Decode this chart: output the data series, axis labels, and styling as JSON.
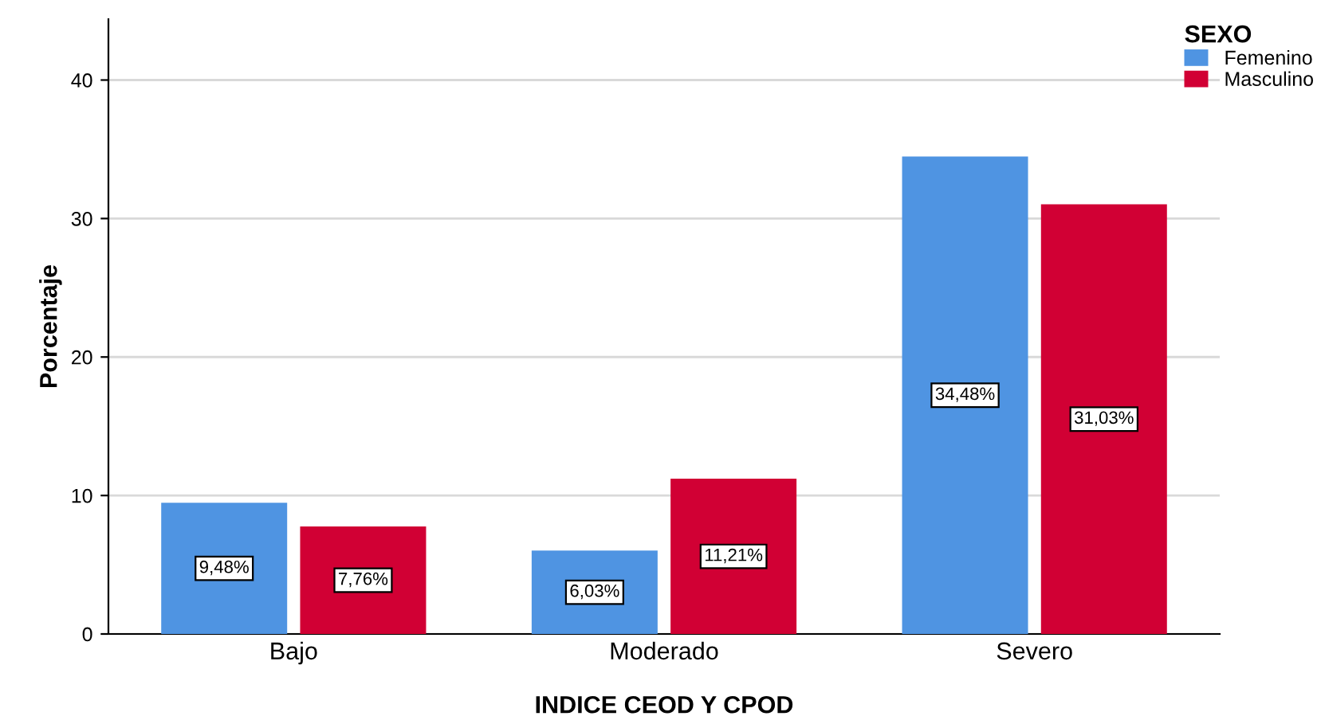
{
  "chart_data": {
    "type": "bar",
    "xlabel": "INDICE CEOD Y CPOD",
    "ylabel": "Porcentaje",
    "legend_title": "SEXO",
    "categories": [
      "Bajo",
      "Moderado",
      "Severo"
    ],
    "series": [
      {
        "name": "Femenino",
        "color": "#4f94e2",
        "values": [
          9.48,
          6.03,
          34.48
        ],
        "value_labels": [
          "9,48%",
          "6,03%",
          "34,48%"
        ]
      },
      {
        "name": "Masculino",
        "color": "#d10034",
        "values": [
          7.76,
          11.21,
          31.03
        ],
        "value_labels": [
          "7,76%",
          "11,21%",
          "31,03%"
        ]
      }
    ],
    "ylim": [
      0,
      44.4
    ],
    "yticks": [
      0,
      10,
      20,
      30,
      40
    ],
    "grid": "y",
    "legend": "top right"
  }
}
